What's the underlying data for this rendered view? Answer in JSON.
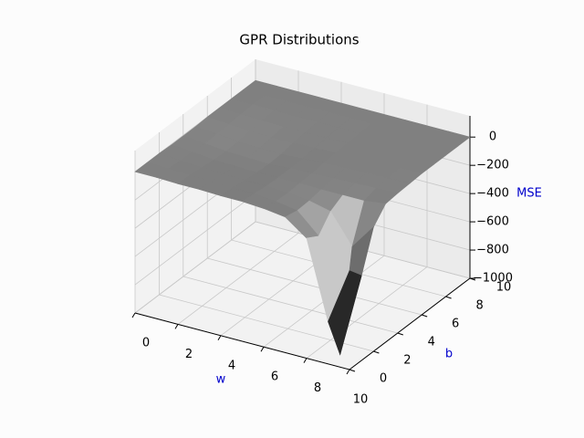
{
  "chart_data": {
    "type": "surface",
    "title": "GPR Distributions",
    "xlabel": "w",
    "ylabel": "b",
    "zlabel": "MSE",
    "x": [
      0,
      1,
      2,
      3,
      4,
      5,
      6,
      7,
      8,
      9,
      10
    ],
    "y": [
      0,
      1,
      2,
      3,
      4,
      5,
      6,
      7,
      8,
      9,
      10
    ],
    "z": [
      [
        0,
        0,
        0,
        -5,
        -5,
        -5,
        0,
        0,
        0,
        0,
        0
      ],
      [
        0,
        -5,
        -10,
        -15,
        -20,
        -15,
        -10,
        -5,
        0,
        0,
        0
      ],
      [
        -5,
        -10,
        -20,
        -30,
        -35,
        -30,
        -20,
        -10,
        -5,
        0,
        0
      ],
      [
        -5,
        -15,
        -25,
        -35,
        -40,
        -35,
        -25,
        -15,
        -5,
        0,
        0
      ],
      [
        -10,
        -20,
        -30,
        -40,
        -45,
        -40,
        -25,
        -15,
        -5,
        0,
        0
      ],
      [
        -10,
        -20,
        -30,
        -35,
        -35,
        -30,
        -20,
        -10,
        -5,
        0,
        0
      ],
      [
        -20,
        -35,
        -40,
        -35,
        -30,
        -20,
        -15,
        -10,
        -5,
        0,
        0
      ],
      [
        -40,
        -60,
        -55,
        -40,
        -25,
        -15,
        -10,
        -5,
        0,
        0,
        0
      ],
      [
        -150,
        -200,
        -90,
        -40,
        -20,
        -10,
        -5,
        0,
        0,
        0,
        0
      ],
      [
        -700,
        -1000,
        -300,
        -40,
        -15,
        -5,
        0,
        0,
        0,
        0,
        0
      ],
      [
        -300,
        -400,
        -120,
        -20,
        -10,
        -5,
        0,
        0,
        0,
        0,
        0
      ]
    ],
    "color": "#808080",
    "xlim": [
      0,
      10
    ],
    "ylim": [
      0,
      10
    ],
    "zlim": [
      -1000,
      150
    ],
    "xticks": [
      0,
      2,
      4,
      6,
      8,
      10
    ],
    "yticks": [
      0,
      2,
      4,
      6,
      8,
      10
    ],
    "zticks": [
      {
        "value": 0,
        "label": "0"
      },
      {
        "value": -200,
        "label": "−200"
      },
      {
        "value": -400,
        "label": "−400"
      },
      {
        "value": -600,
        "label": "−600"
      },
      {
        "value": -800,
        "label": "−800"
      },
      {
        "value": -1000,
        "label": "−1000"
      }
    ],
    "grid": true
  }
}
